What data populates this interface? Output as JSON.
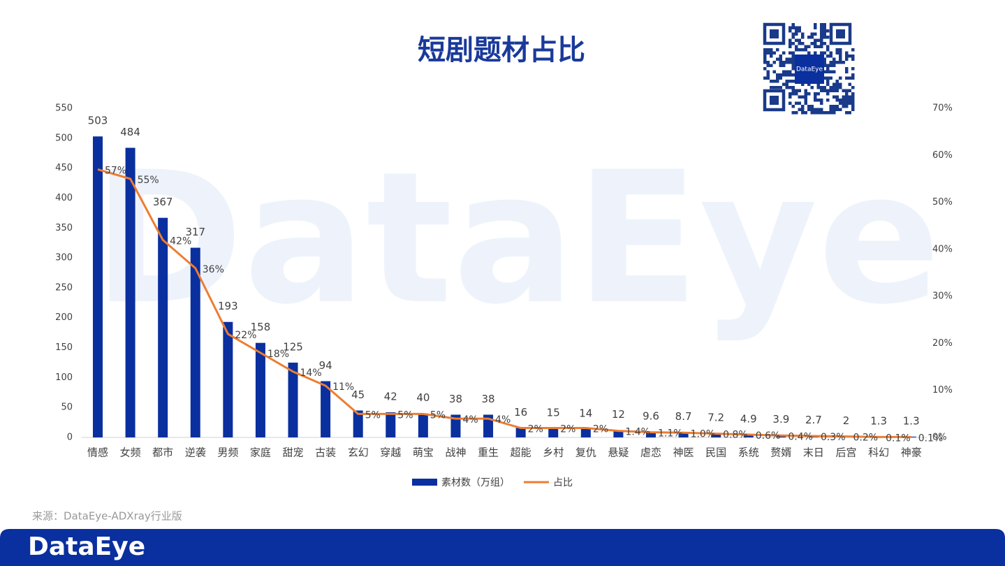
{
  "chart_data": {
    "type": "bar_line",
    "title": "短剧题材占比",
    "watermark": "DataEye",
    "qr_label": "DataEye",
    "source": "来源：DataEye-ADXray行业版",
    "footer_logo": "DataEye",
    "categories": [
      "情感",
      "女频",
      "都市",
      "逆袭",
      "男频",
      "家庭",
      "甜宠",
      "古装",
      "玄幻",
      "穿越",
      "萌宝",
      "战神",
      "重生",
      "超能",
      "乡村",
      "复仇",
      "悬疑",
      "虐恋",
      "神医",
      "民国",
      "系统",
      "赘婿",
      "末日",
      "后宫",
      "科幻",
      "神豪"
    ],
    "series": [
      {
        "name": "素材数（万组）",
        "type": "bar",
        "color": "#0a2f9e",
        "values": [
          503,
          484,
          367,
          317,
          193,
          158,
          125,
          94,
          45,
          42,
          40,
          38,
          38,
          16,
          15,
          14,
          12,
          9.6,
          8.7,
          7.2,
          4.9,
          3.9,
          2.7,
          2,
          1.3,
          1.3
        ]
      },
      {
        "name": "占比",
        "type": "line",
        "axis": "y2",
        "color": "#ed7d31",
        "values": [
          57,
          55,
          42,
          36,
          22,
          18,
          14,
          11,
          5,
          5,
          5,
          4,
          4,
          2,
          2,
          2,
          1.4,
          1.1,
          1.0,
          0.8,
          0.6,
          0.4,
          0.3,
          0.2,
          0.1,
          0.1
        ],
        "value_labels": [
          "57%",
          "55%",
          "42%",
          "36%",
          "22%",
          "18%",
          "14%",
          "11%",
          "5%",
          "5%",
          "5%",
          "4%",
          "4%",
          "2%",
          "2%",
          "2%",
          "1.4%",
          "1.1%",
          "1.0%",
          "0.8%",
          "0.6%",
          "0.4%",
          "0.3%",
          "0.2%",
          "0.1%",
          "0.1%"
        ]
      }
    ],
    "ylim": [
      0,
      550
    ],
    "yticks": [
      0,
      50,
      100,
      150,
      200,
      250,
      300,
      350,
      400,
      450,
      500,
      550
    ],
    "y2lim": [
      0,
      70
    ],
    "y2ticks": [
      {
        "value": 0,
        "label": "0%"
      },
      {
        "value": 10,
        "label": "10%"
      },
      {
        "value": 20,
        "label": "20%"
      },
      {
        "value": 30,
        "label": "30%"
      },
      {
        "value": 40,
        "label": "40%"
      },
      {
        "value": 50,
        "label": "50%"
      },
      {
        "value": 60,
        "label": "60%"
      },
      {
        "value": 70,
        "label": "70%"
      }
    ],
    "grid": false,
    "legend": "bottom"
  }
}
